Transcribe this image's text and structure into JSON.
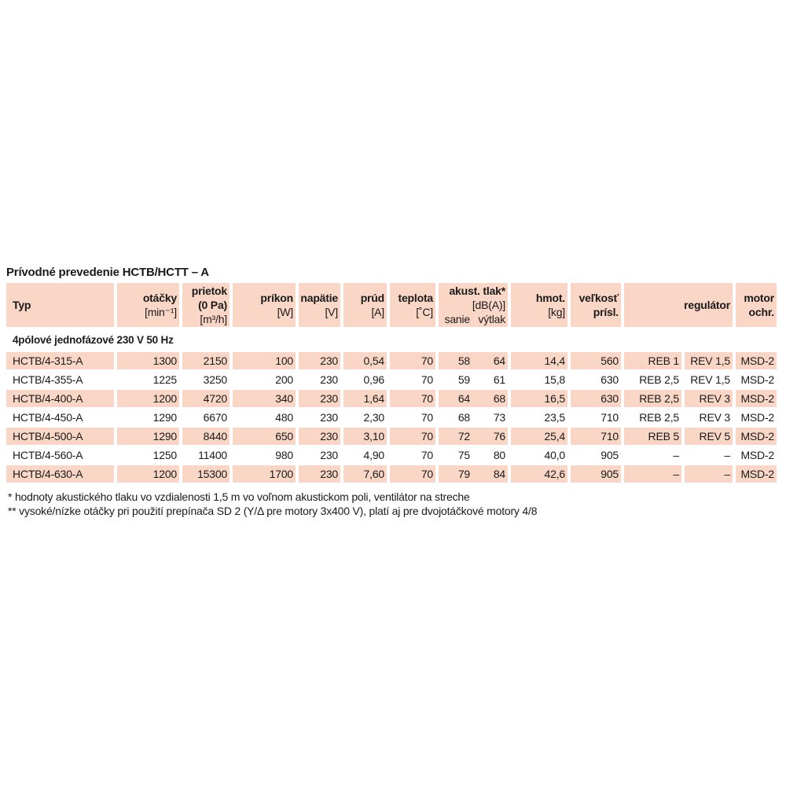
{
  "title": "Prívodné prevedenie HCTB/HCTT – A",
  "header": [
    {
      "lines": [
        "Typ"
      ]
    },
    {
      "lines": [
        "otáčky",
        "[min⁻¹]"
      ]
    },
    {
      "lines": [
        "prietok",
        "(0 Pa)",
        "[m³/h]"
      ]
    },
    {
      "lines": [
        "príkon",
        "[W]"
      ]
    },
    {
      "lines": [
        "napätie",
        "[V]"
      ]
    },
    {
      "lines": [
        "prúd",
        "[A]"
      ]
    },
    {
      "lines": [
        "teplota",
        "[˚C]"
      ]
    },
    {
      "lines": [
        "akust. tlak*",
        "[dB(A)]"
      ],
      "sub": [
        "sanie",
        "výtlak"
      ]
    },
    {
      "lines": [
        "hmot.",
        "[kg]"
      ]
    },
    {
      "lines": [
        "veľkosť",
        "prísl."
      ]
    },
    {
      "lines": [
        "regulátor"
      ]
    },
    {
      "lines": [
        "motor",
        "ochr."
      ]
    }
  ],
  "section": "4pólové jednofázové 230 V 50 Hz",
  "rows": [
    [
      "HCTB/4-315-A",
      "1300",
      "2150",
      "100",
      "230",
      "0,54",
      "70",
      "58",
      "64",
      "14,4",
      "560",
      "REB 1",
      "REV 1,5",
      "MSD-2"
    ],
    [
      "HCTB/4-355-A",
      "1225",
      "3250",
      "200",
      "230",
      "0,96",
      "70",
      "59",
      "61",
      "15,8",
      "630",
      "REB 2,5",
      "REV 1,5",
      "MSD-2"
    ],
    [
      "HCTB/4-400-A",
      "1200",
      "4720",
      "340",
      "230",
      "1,64",
      "70",
      "64",
      "68",
      "16,5",
      "630",
      "REB 2,5",
      "REV 3",
      "MSD-2"
    ],
    [
      "HCTB/4-450-A",
      "1290",
      "6670",
      "480",
      "230",
      "2,30",
      "70",
      "68",
      "73",
      "23,5",
      "710",
      "REB 2,5",
      "REV 3",
      "MSD-2"
    ],
    [
      "HCTB/4-500-A",
      "1290",
      "8440",
      "650",
      "230",
      "3,10",
      "70",
      "72",
      "76",
      "25,4",
      "710",
      "REB 5",
      "REV 5",
      "MSD-2"
    ],
    [
      "HCTB/4-560-A",
      "1250",
      "11400",
      "980",
      "230",
      "4,90",
      "70",
      "75",
      "80",
      "40,0",
      "905",
      "–",
      "–",
      "MSD-2"
    ],
    [
      "HCTB/4-630-A",
      "1200",
      "15300",
      "1700",
      "230",
      "7,60",
      "70",
      "79",
      "84",
      "42,6",
      "905",
      "–",
      "–",
      "MSD-2"
    ]
  ],
  "footnotes": [
    "* hodnoty akustického tlaku vo vzdialenosti 1,5 m vo voľnom akustickom poli, ventilátor na streche",
    "** vysoké/nízke otáčky pri použití prepínača SD 2 (Y/Δ pre motory 3x400 V), platí aj pre dvojotáčkové motory 4/8"
  ]
}
